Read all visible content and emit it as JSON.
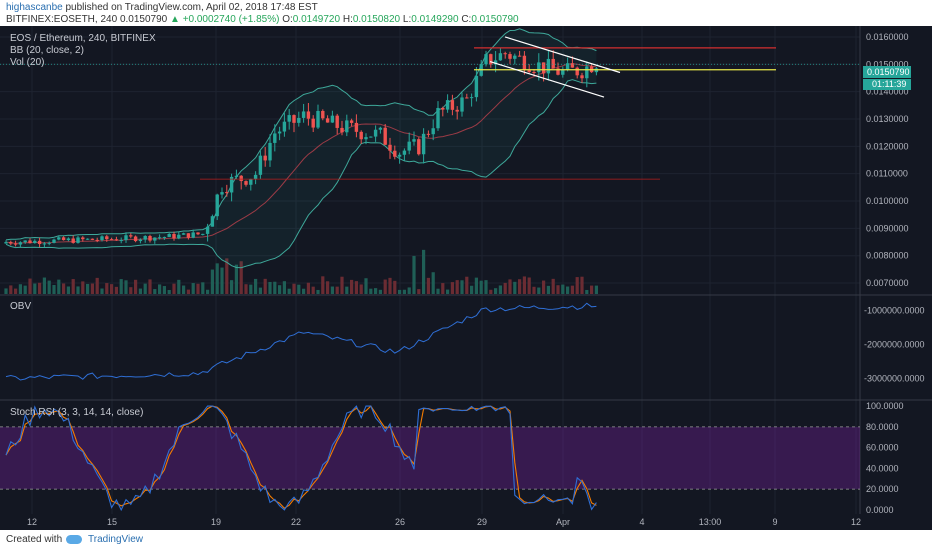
{
  "header": {
    "author": "highascanbe",
    "published_text": "published on TradingView.com, April 02, 2018 17:48 EST",
    "symbol": "BITFINEX:EOSETH, 240",
    "last": "0.0150790",
    "change": "+0.0002740 (+1.85%)",
    "o_label": "O:",
    "o": "0.0149720",
    "h_label": "H:",
    "h": "0.0150820",
    "l_label": "L:",
    "l": "0.0149290",
    "c_label": "C:",
    "c": "0.0150790"
  },
  "legend": {
    "main": "EOS / Ethereum, 240, BITFINEX",
    "bb": "BB (20, close, 2)",
    "vol": "Vol (20)",
    "obv": "OBV",
    "stoch": "Stoch RSI (3, 3, 14, 14, close)"
  },
  "price_badge": {
    "value": "0.0150790",
    "timer": "01:11:39"
  },
  "footer": {
    "created": "Created with",
    "brand": "TradingView"
  },
  "colors": {
    "bg": "#131722",
    "up": "#26a69a",
    "down": "#ef5350",
    "obv": "#2f6fd6",
    "stoch_k": "#2f6fd6",
    "stoch_d": "#f57c00",
    "band": "#7b1fa2"
  },
  "chart_data": [
    {
      "type": "candlestick",
      "title": "EOS / Ethereum, 240, BITFINEX",
      "y_ticks": [
        "0.0160000",
        "0.0150000",
        "0.0140000",
        "0.0130000",
        "0.0120000",
        "0.0110000",
        "0.0100000",
        "0.0090000",
        "0.0080000",
        "0.0070000"
      ],
      "ylim": [
        0.0066,
        0.0164
      ],
      "x_ticks": [
        "12",
        "15",
        "19",
        "22",
        "26",
        "29",
        "Apr",
        "4",
        "13:00",
        "9",
        "12"
      ],
      "approx_close_path": [
        {
          "x": "12",
          "y": 0.0085
        },
        {
          "x": "15",
          "y": 0.0086
        },
        {
          "x": "19",
          "y": 0.0088
        },
        {
          "x": "20",
          "y": 0.0108
        },
        {
          "x": "22",
          "y": 0.0128
        },
        {
          "x": "24",
          "y": 0.0127
        },
        {
          "x": "26",
          "y": 0.0117
        },
        {
          "x": "27",
          "y": 0.0131
        },
        {
          "x": "29",
          "y": 0.0153
        },
        {
          "x": "31",
          "y": 0.0149
        },
        {
          "x": "Apr",
          "y": 0.0147
        },
        {
          "x": "2",
          "y": 0.0151
        }
      ],
      "horizontal_levels": [
        0.0156,
        0.015,
        0.0148,
        0.0108
      ],
      "indicators": [
        "BB (20, close, 2)",
        "Vol (20)"
      ]
    },
    {
      "type": "line",
      "title": "OBV",
      "y_ticks": [
        "-1000000.0000",
        "-2000000.0000",
        "-3000000.0000"
      ],
      "ylim": [
        -3600000,
        -600000
      ]
    },
    {
      "type": "line",
      "title": "Stoch RSI (3, 3, 14, 14, close)",
      "y_ticks": [
        "100.0000",
        "80.0000",
        "60.0000",
        "40.0000",
        "20.0000",
        "0.0000"
      ],
      "ylim": [
        -4,
        104
      ],
      "band": [
        20,
        80
      ]
    }
  ]
}
